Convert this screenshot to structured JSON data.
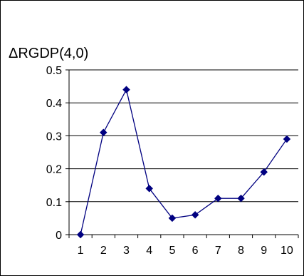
{
  "chart_data": {
    "type": "line",
    "title": "ΔRGDP(4,0)",
    "xlabel": "",
    "ylabel": "",
    "categories": [
      "1",
      "2",
      "3",
      "4",
      "5",
      "6",
      "7",
      "8",
      "9",
      "10"
    ],
    "series": [
      {
        "values": [
          0,
          0.31,
          0.44,
          0.14,
          0.05,
          0.06,
          0.11,
          0.11,
          0.19,
          0.29
        ]
      }
    ],
    "ylim": [
      0,
      0.5
    ],
    "yticks": [
      "0",
      "0.1",
      "0.2",
      "0.3",
      "0.4",
      "0.5"
    ],
    "grid": "horizontal",
    "line_color": "#000080",
    "marker": "diamond",
    "legend": "none"
  }
}
